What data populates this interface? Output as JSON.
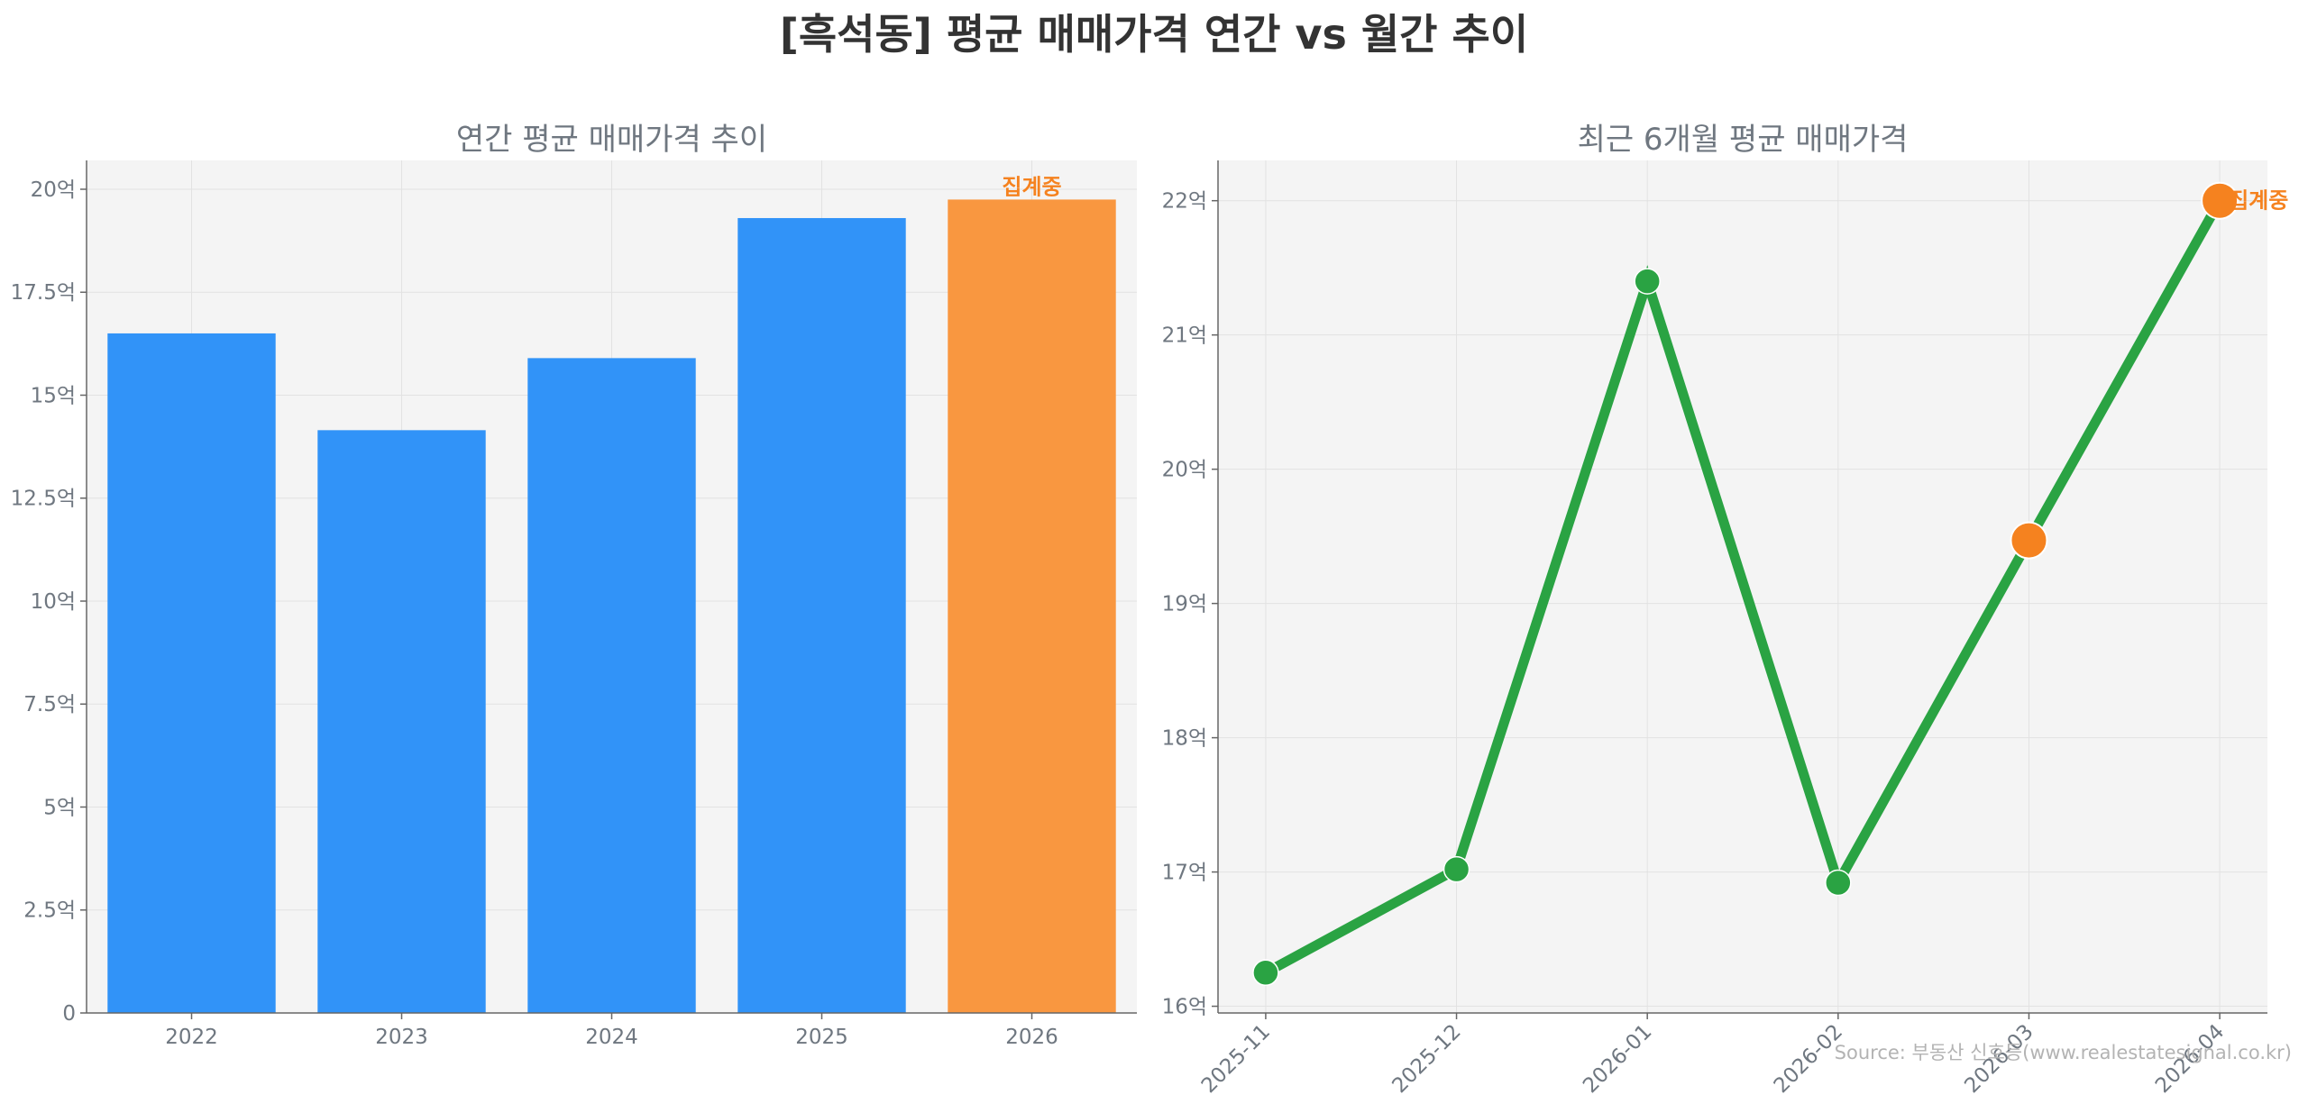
{
  "title": "[흑석동] 평균 매매가격 연간 vs 월간 추이",
  "source": "Source: 부동산 신호등(www.realestatesignal.co.kr)",
  "colors": {
    "bar": "#3193f8",
    "highlight": "#f99740",
    "line": "#2aa343",
    "highlight_marker": "#f5821f",
    "axes_bg": "#f4f4f4",
    "grid": "#e2e2e2"
  },
  "chart_data": [
    {
      "type": "bar",
      "title": "연간 평균 매매가격 추이",
      "categories": [
        "2022",
        "2023",
        "2024",
        "2025",
        "2026"
      ],
      "values": [
        16.5,
        14.15,
        15.9,
        19.3,
        19.75
      ],
      "highlight_index": 4,
      "annotation": {
        "index": 4,
        "text": "집계중"
      },
      "ylim": [
        0,
        20.7
      ],
      "yticks": [
        {
          "value": 0,
          "label": "0"
        },
        {
          "value": 2.5,
          "label": "2.5억"
        },
        {
          "value": 5,
          "label": "5억"
        },
        {
          "value": 7.5,
          "label": "7.5억"
        },
        {
          "value": 10,
          "label": "10억"
        },
        {
          "value": 12.5,
          "label": "12.5억"
        },
        {
          "value": 15,
          "label": "15억"
        },
        {
          "value": 17.5,
          "label": "17.5억"
        },
        {
          "value": 20,
          "label": "20억"
        }
      ],
      "grid": true
    },
    {
      "type": "line",
      "title": "최근 6개월 평균 매매가격",
      "x": [
        "2025-11",
        "2025-12",
        "2026-01",
        "2026-02",
        "2026-03",
        "2026-04"
      ],
      "values": [
        16.25,
        17.02,
        21.4,
        16.92,
        19.47,
        22.0
      ],
      "highlight_indices": [
        4,
        5
      ],
      "annotation": {
        "index": 5,
        "text": "집계중"
      },
      "ylim": [
        15.95,
        22.3
      ],
      "yticks": [
        {
          "value": 16,
          "label": "16억"
        },
        {
          "value": 17,
          "label": "17억"
        },
        {
          "value": 18,
          "label": "18억"
        },
        {
          "value": 19,
          "label": "19억"
        },
        {
          "value": 20,
          "label": "20억"
        },
        {
          "value": 21,
          "label": "21억"
        },
        {
          "value": 22,
          "label": "22억"
        }
      ],
      "grid": true
    }
  ]
}
